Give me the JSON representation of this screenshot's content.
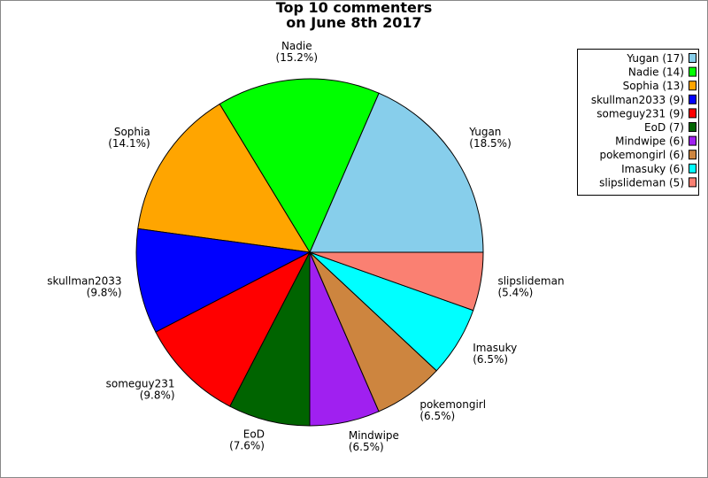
{
  "chart_data": {
    "type": "pie",
    "title": [
      "Top 10 commenters",
      "on June 8th 2017"
    ],
    "categories": [
      "Yugan",
      "Nadie",
      "Sophia",
      "skullman2033",
      "someguy231",
      "EoD",
      "Mindwipe",
      "pokemongirl",
      "Imasuky",
      "slipslideman"
    ],
    "values": [
      17,
      14,
      13,
      9,
      9,
      7,
      6,
      6,
      6,
      5
    ],
    "percent_labels": [
      "(18.5%)",
      "(15.2%)",
      "(14.1%)",
      "(9.8%)",
      "(9.8%)",
      "(7.6%)",
      "(6.5%)",
      "(6.5%)",
      "(6.5%)",
      "(5.4%)"
    ],
    "legend_labels": [
      "Yugan (17)",
      "Nadie (14)",
      "Sophia (13)",
      "skullman2033 (9)",
      "someguy231 (9)",
      "EoD (7)",
      "Mindwipe (6)",
      "pokemongirl (6)",
      "Imasuky (6)",
      "slipslideman (5)"
    ],
    "colors": [
      "#87ceeb",
      "#00ff00",
      "#ffa500",
      "#0000ff",
      "#ff0000",
      "#006400",
      "#a020f0",
      "#cd853f",
      "#00ffff",
      "#fa8072"
    ],
    "legend": "upper right"
  }
}
